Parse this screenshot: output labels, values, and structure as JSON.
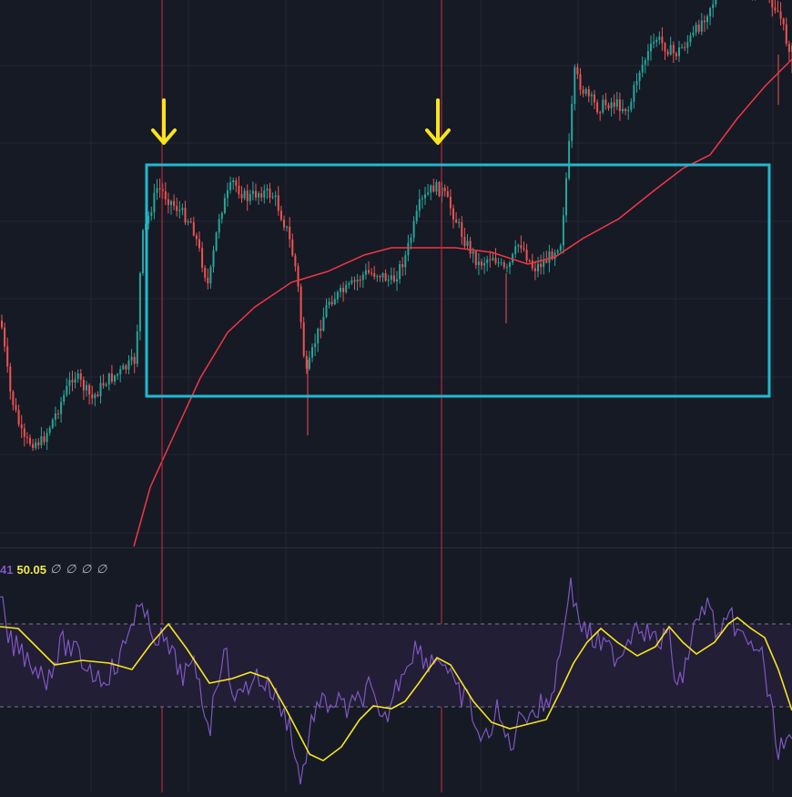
{
  "chart_data": {
    "type": "candlestick",
    "price_panel": {
      "series": [
        {
          "kind": "candlestick",
          "up_color": "#26a69a",
          "down_color": "#ef5350"
        },
        {
          "kind": "line",
          "color": "#f23645"
        }
      ],
      "highlight_box": {
        "color": "#22b8cf"
      },
      "markers": [
        {
          "kind": "arrow-down",
          "color": "#f7e51e"
        },
        {
          "kind": "arrow-down",
          "color": "#f7e51e"
        }
      ],
      "vertical_lines_color": "#b2283a",
      "gridlines": true
    },
    "indicator_panel": {
      "legend": {
        "rsi_partial": "41",
        "rsi_ma": "50.05",
        "null_placeholders": "∅ ∅ ∅ ∅"
      },
      "series": [
        {
          "kind": "rsi",
          "color": "#7e57c2"
        },
        {
          "kind": "rsi-ma",
          "color": "#f7e51e"
        }
      ],
      "band_upper": 70,
      "band_lower": 30,
      "band_fill": "#221e35"
    }
  },
  "colors": {
    "background": "#161a25",
    "grid": "#242733",
    "separator": "#2a2e39"
  }
}
